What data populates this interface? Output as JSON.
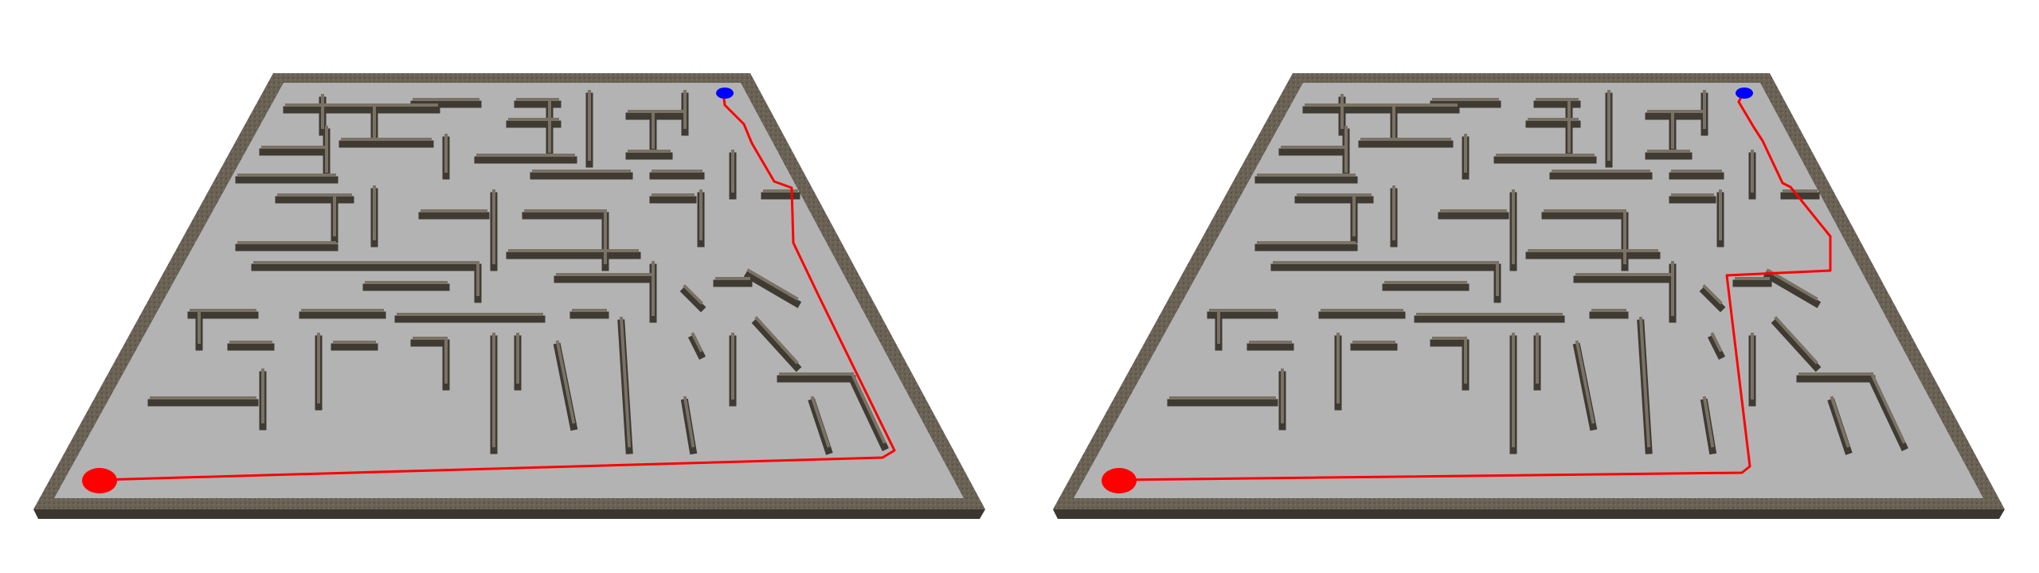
{
  "colors": {
    "background": "#ffffff",
    "floor": "#b3b3b3",
    "wall_top": "#6d6558",
    "wall_side": "#3f3a32",
    "path": "#ff0000",
    "start_marker": "#ff0000",
    "goal_marker": "#0000ff"
  },
  "icons": {
    "start": "red-ellipse-marker",
    "goal": "blue-ellipse-marker"
  }
}
